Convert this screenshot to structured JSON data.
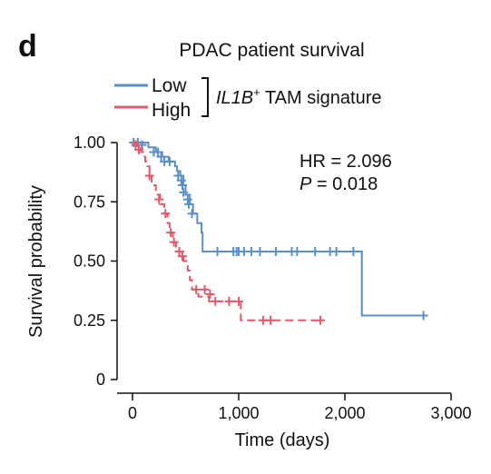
{
  "panel_label": "d",
  "chart_data": {
    "type": "line",
    "title": "PDAC patient survival",
    "xlabel": "Time (days)",
    "ylabel": "Survival probability",
    "xlim": [
      -80,
      3000
    ],
    "ylim": [
      0,
      1
    ],
    "x_ticks": [
      0,
      1000,
      2000,
      3000
    ],
    "x_tick_labels": [
      "0",
      "1,000",
      "2,000",
      "3,000"
    ],
    "y_ticks": [
      0,
      0.25,
      0.5,
      0.75,
      1.0
    ],
    "y_tick_labels": [
      "0",
      "0.25",
      "0.50",
      "0.75",
      "1.00"
    ],
    "legend": {
      "position": "top-left",
      "group_label_italic": "IL1B",
      "group_label_sup": "+",
      "group_label_rest": " TAM signature"
    },
    "annotations": {
      "hr": "HR = 2.096",
      "p_italic": "P",
      "p_rest": " = 0.018"
    },
    "series": [
      {
        "name": "Low",
        "color": "#5b8fca",
        "dash": "solid",
        "steps": [
          [
            0,
            1.0
          ],
          [
            150,
            0.98
          ],
          [
            220,
            0.96
          ],
          [
            280,
            0.94
          ],
          [
            340,
            0.92
          ],
          [
            400,
            0.9
          ],
          [
            420,
            0.88
          ],
          [
            450,
            0.86
          ],
          [
            480,
            0.82
          ],
          [
            500,
            0.78
          ],
          [
            540,
            0.74
          ],
          [
            570,
            0.7
          ],
          [
            610,
            0.66
          ],
          [
            650,
            0.62
          ],
          [
            660,
            0.54
          ],
          [
            2150,
            0.54
          ],
          [
            2160,
            0.27
          ],
          [
            2740,
            0.27
          ]
        ],
        "censors": [
          [
            10,
            1.0
          ],
          [
            50,
            1.0
          ],
          [
            90,
            0.99
          ],
          [
            200,
            0.96
          ],
          [
            240,
            0.96
          ],
          [
            270,
            0.94
          ],
          [
            300,
            0.92
          ],
          [
            350,
            0.92
          ],
          [
            430,
            0.86
          ],
          [
            460,
            0.84
          ],
          [
            470,
            0.82
          ],
          [
            480,
            0.79
          ],
          [
            520,
            0.76
          ],
          [
            530,
            0.74
          ],
          [
            560,
            0.7
          ],
          [
            800,
            0.54
          ],
          [
            950,
            0.54
          ],
          [
            980,
            0.54
          ],
          [
            1000,
            0.54
          ],
          [
            1050,
            0.54
          ],
          [
            1120,
            0.54
          ],
          [
            1200,
            0.54
          ],
          [
            1350,
            0.54
          ],
          [
            1500,
            0.54
          ],
          [
            1550,
            0.54
          ],
          [
            1720,
            0.54
          ],
          [
            1860,
            0.54
          ],
          [
            1920,
            0.54
          ],
          [
            2080,
            0.54
          ],
          [
            2740,
            0.27
          ]
        ]
      },
      {
        "name": "High",
        "color": "#e05a6a",
        "dash": "dashed",
        "steps": [
          [
            0,
            1.0
          ],
          [
            40,
            0.98
          ],
          [
            80,
            0.96
          ],
          [
            100,
            0.94
          ],
          [
            120,
            0.92
          ],
          [
            140,
            0.9
          ],
          [
            160,
            0.86
          ],
          [
            180,
            0.82
          ],
          [
            220,
            0.78
          ],
          [
            260,
            0.74
          ],
          [
            300,
            0.7
          ],
          [
            330,
            0.66
          ],
          [
            350,
            0.62
          ],
          [
            380,
            0.58
          ],
          [
            410,
            0.56
          ],
          [
            440,
            0.54
          ],
          [
            480,
            0.5
          ],
          [
            520,
            0.46
          ],
          [
            540,
            0.42
          ],
          [
            560,
            0.38
          ],
          [
            620,
            0.35
          ],
          [
            720,
            0.33
          ],
          [
            1020,
            0.25
          ],
          [
            1800,
            0.25
          ]
        ],
        "censors": [
          [
            30,
            0.99
          ],
          [
            60,
            0.97
          ],
          [
            160,
            0.86
          ],
          [
            250,
            0.76
          ],
          [
            310,
            0.7
          ],
          [
            360,
            0.62
          ],
          [
            390,
            0.58
          ],
          [
            440,
            0.54
          ],
          [
            470,
            0.52
          ],
          [
            600,
            0.38
          ],
          [
            680,
            0.38
          ],
          [
            730,
            0.36
          ],
          [
            780,
            0.33
          ],
          [
            910,
            0.33
          ],
          [
            1000,
            0.33
          ],
          [
            1230,
            0.25
          ],
          [
            1300,
            0.25
          ],
          [
            1770,
            0.25
          ]
        ]
      }
    ]
  }
}
